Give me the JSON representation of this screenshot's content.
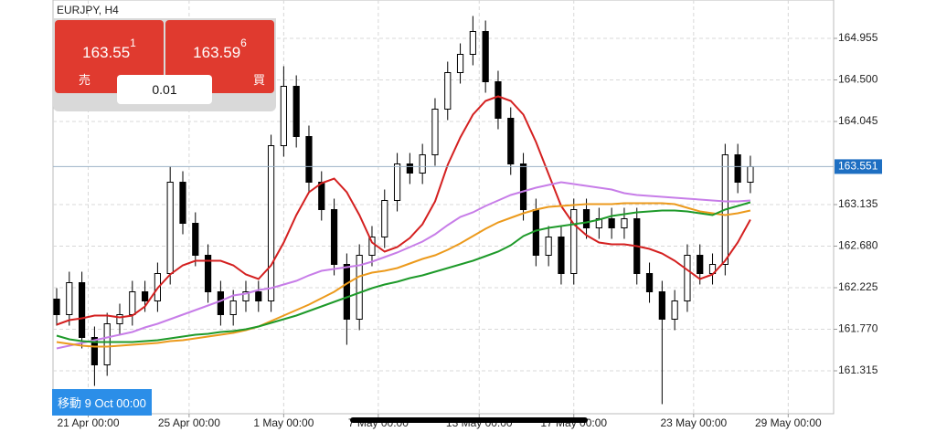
{
  "symbol_label": "EURJPY, H4",
  "trade_panel": {
    "sell": {
      "price_main": "163.55",
      "price_sup": "1",
      "label": "売"
    },
    "buy": {
      "price_main": "163.59",
      "price_sup": "6",
      "label": "買"
    },
    "lot": "0.01"
  },
  "scroll_badge": "移動 9 Oct 00:00",
  "chart_data": {
    "type": "candlestick",
    "up_color": "#ffffff",
    "down_color": "#000000",
    "grid": true,
    "ylim": [
      160.845,
      165.375
    ],
    "yticks": [
      164.955,
      {
        "value": 164.5,
        "label": "164.500"
      },
      164.045,
      163.135,
      {
        "value": 162.68,
        "label": "162.680"
      },
      162.225,
      {
        "value": 161.77,
        "label": "161.770"
      },
      161.315
    ],
    "xlim": [
      -0.29,
      61.6
    ],
    "xticks": [
      {
        "value": 2.5,
        "label": "21 Apr 00:00"
      },
      {
        "value": 10.5,
        "label": "25 Apr 00:00"
      },
      {
        "value": 18,
        "label": "1 May 00:00"
      },
      {
        "value": 25.5,
        "label": "7 May 00:00"
      },
      {
        "value": 33.5,
        "label": "13 May 00:00"
      },
      {
        "value": 41,
        "label": "17 May 00:00"
      },
      {
        "value": 50.5,
        "label": "23 May 00:00"
      },
      {
        "value": 58,
        "label": "29 May 00:00"
      }
    ],
    "current_price": 163.551,
    "current_price_color": "#1e6fc2",
    "open": [
      162.1,
      161.93,
      162.28,
      161.68,
      161.38,
      161.83,
      161.93,
      162.18,
      162.08,
      162.38,
      163.38,
      162.93,
      162.58,
      162.18,
      161.93,
      162.08,
      162.18,
      162.08,
      163.78,
      164.43,
      163.88,
      163.38,
      163.08,
      162.48,
      161.88,
      162.58,
      162.78,
      163.18,
      163.58,
      163.48,
      163.68,
      164.18,
      164.58,
      164.78,
      165.03,
      164.48,
      164.08,
      163.58,
      163.08,
      162.58,
      162.78,
      162.38,
      163.08,
      162.88,
      162.98,
      162.88,
      162.98,
      162.38,
      162.18,
      161.88,
      162.08,
      162.58,
      162.38,
      162.48,
      163.68,
      163.38
    ],
    "high": [
      162.22,
      162.4,
      162.4,
      161.8,
      161.95,
      162.05,
      162.3,
      162.3,
      162.5,
      163.55,
      163.5,
      163.05,
      162.7,
      162.3,
      162.2,
      162.3,
      162.3,
      163.9,
      164.65,
      164.55,
      164.0,
      163.5,
      163.2,
      162.6,
      162.7,
      162.9,
      163.3,
      163.7,
      163.7,
      163.8,
      164.3,
      164.7,
      164.9,
      165.2,
      165.15,
      164.6,
      164.2,
      163.7,
      163.2,
      162.9,
      162.9,
      163.2,
      163.2,
      163.1,
      163.1,
      163.1,
      163.1,
      162.5,
      162.3,
      162.2,
      162.7,
      162.7,
      162.6,
      163.8,
      163.8,
      163.67
    ],
    "low": [
      161.81,
      161.81,
      161.56,
      161.15,
      161.26,
      161.71,
      161.81,
      161.96,
      161.96,
      162.26,
      162.81,
      162.46,
      162.06,
      161.81,
      161.81,
      161.96,
      161.96,
      161.96,
      163.66,
      163.76,
      163.26,
      162.96,
      162.36,
      161.6,
      161.76,
      162.46,
      162.66,
      163.06,
      163.36,
      163.36,
      163.56,
      164.06,
      164.46,
      164.66,
      164.36,
      163.96,
      163.46,
      162.96,
      162.46,
      162.46,
      162.26,
      162.26,
      162.76,
      162.76,
      162.76,
      162.76,
      162.26,
      162.06,
      160.95,
      161.76,
      161.96,
      162.26,
      162.26,
      162.36,
      163.26,
      163.26
    ],
    "close": [
      161.93,
      162.28,
      161.68,
      161.38,
      161.83,
      161.93,
      162.18,
      162.08,
      162.38,
      163.38,
      162.93,
      162.58,
      162.18,
      161.93,
      162.08,
      162.18,
      162.08,
      163.78,
      164.43,
      163.88,
      163.38,
      163.08,
      162.48,
      161.88,
      162.58,
      162.78,
      163.18,
      163.58,
      163.48,
      163.68,
      164.18,
      164.58,
      164.78,
      165.03,
      164.48,
      164.08,
      163.58,
      163.08,
      162.58,
      162.78,
      162.38,
      163.08,
      162.88,
      162.98,
      162.88,
      162.98,
      162.38,
      162.18,
      161.88,
      162.08,
      162.58,
      162.38,
      162.48,
      163.68,
      163.38,
      163.55
    ],
    "series": [
      {
        "color": "#d42020",
        "values": [
          161.82,
          161.87,
          161.89,
          161.92,
          161.92,
          161.9,
          161.92,
          162.02,
          162.22,
          162.37,
          162.47,
          162.52,
          162.52,
          162.52,
          162.47,
          162.37,
          162.32,
          162.47,
          162.72,
          163.02,
          163.27,
          163.37,
          163.42,
          163.27,
          163.02,
          162.72,
          162.62,
          162.67,
          162.77,
          162.92,
          163.17,
          163.57,
          163.87,
          164.12,
          164.27,
          164.32,
          164.27,
          164.12,
          163.82,
          163.47,
          163.12,
          162.92,
          162.8,
          162.72,
          162.7,
          162.7,
          162.68,
          162.65,
          162.6,
          162.52,
          162.42,
          162.32,
          162.37,
          162.52,
          162.72,
          162.97
        ]
      },
      {
        "color": "#c77de8",
        "values": [
          161.56,
          161.59,
          161.62,
          161.65,
          161.68,
          161.71,
          161.74,
          161.79,
          161.83,
          161.88,
          161.93,
          161.98,
          162.03,
          162.08,
          162.14,
          162.16,
          162.2,
          162.22,
          162.26,
          162.3,
          162.36,
          162.41,
          162.43,
          162.45,
          162.47,
          162.51,
          162.56,
          162.61,
          162.67,
          162.73,
          162.81,
          162.91,
          163.0,
          163.05,
          163.12,
          163.18,
          163.24,
          163.28,
          163.32,
          163.35,
          163.38,
          163.36,
          163.34,
          163.32,
          163.3,
          163.26,
          163.24,
          163.23,
          163.22,
          163.21,
          163.2,
          163.19,
          163.18,
          163.17,
          163.17,
          163.18
        ]
      },
      {
        "color": "#ec9a1c",
        "values": [
          161.63,
          161.61,
          161.59,
          161.58,
          161.58,
          161.59,
          161.6,
          161.61,
          161.62,
          161.64,
          161.65,
          161.67,
          161.69,
          161.71,
          161.73,
          161.76,
          161.8,
          161.86,
          161.92,
          161.98,
          162.04,
          162.11,
          162.18,
          162.27,
          162.35,
          162.39,
          162.41,
          162.44,
          162.49,
          162.54,
          162.58,
          162.64,
          162.71,
          162.79,
          162.87,
          162.94,
          162.99,
          163.04,
          163.08,
          163.11,
          163.12,
          163.13,
          163.14,
          163.14,
          163.14,
          163.15,
          163.15,
          163.15,
          163.15,
          163.14,
          163.1,
          163.06,
          163.04,
          163.02,
          163.04,
          163.07
        ]
      },
      {
        "color": "#1e9a2a",
        "values": [
          161.7,
          161.66,
          161.64,
          161.63,
          161.63,
          161.63,
          161.63,
          161.64,
          161.65,
          161.67,
          161.69,
          161.71,
          161.72,
          161.74,
          161.75,
          161.77,
          161.8,
          161.84,
          161.88,
          161.92,
          161.97,
          162.02,
          162.07,
          162.12,
          162.17,
          162.22,
          162.26,
          162.29,
          162.33,
          162.36,
          162.4,
          162.44,
          162.48,
          162.52,
          162.57,
          162.62,
          162.69,
          162.79,
          162.85,
          162.88,
          162.9,
          162.92,
          162.94,
          162.97,
          163.01,
          163.03,
          163.05,
          163.06,
          163.07,
          163.07,
          163.06,
          163.04,
          163.02,
          163.08,
          163.12,
          163.16
        ]
      }
    ]
  }
}
